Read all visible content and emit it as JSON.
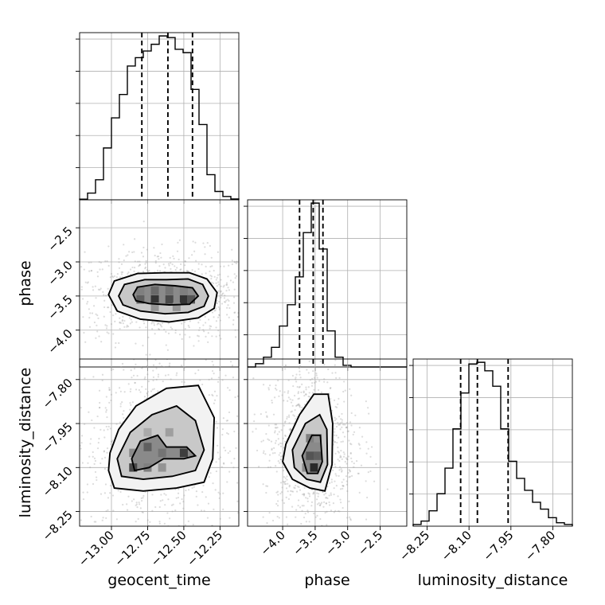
{
  "chart_data": {
    "type": "corner",
    "grid": true,
    "parameters": [
      {
        "name": "geocent_time",
        "label": "geocent_time",
        "range": [
          -13.22,
          -12.12
        ],
        "ticks": [
          -13.0,
          -12.75,
          -12.5,
          -12.25
        ],
        "tick_labels": [
          "−13.00",
          "−12.75",
          "−12.50",
          "−12.25"
        ],
        "histogram": {
          "edges": [
            -13.22,
            -13.165,
            -13.11,
            -13.055,
            -13.0,
            -12.945,
            -12.89,
            -12.835,
            -12.78,
            -12.725,
            -12.67,
            -12.615,
            -12.56,
            -12.505,
            -12.45,
            -12.395,
            -12.34,
            -12.285,
            -12.23,
            -12.175,
            -12.12
          ],
          "counts": [
            0.004,
            0.04,
            0.12,
            0.31,
            0.49,
            0.63,
            0.8,
            0.85,
            0.89,
            0.93,
            0.98,
            0.97,
            0.9,
            0.88,
            0.66,
            0.45,
            0.15,
            0.05,
            0.02,
            0.005
          ]
        },
        "quantiles": [
          -12.79,
          -12.61,
          -12.44
        ]
      },
      {
        "name": "phase",
        "label": "phase",
        "range": [
          -4.54,
          -2.09
        ],
        "ticks": [
          -4.0,
          -3.5,
          -3.0,
          -2.5
        ],
        "tick_labels": [
          "−4.0",
          "−3.5",
          "−3.0",
          "−2.5"
        ],
        "histogram": {
          "edges": [
            -4.54,
            -4.4175,
            -4.295,
            -4.1725,
            -4.05,
            -3.9275,
            -3.805,
            -3.6825,
            -3.56,
            -3.4375,
            -3.315,
            -3.1925,
            -3.07,
            -2.9475,
            -2.825,
            -2.7025,
            -2.58,
            -2.4575,
            -2.335,
            -2.2125,
            -2.09
          ],
          "counts": [
            0.0,
            0.02,
            0.06,
            0.12,
            0.25,
            0.38,
            0.55,
            0.82,
            1.0,
            0.72,
            0.22,
            0.06,
            0.01,
            0.0,
            0.0,
            0.0,
            0.0,
            0.0,
            0.0,
            0.0
          ]
        },
        "quantiles": [
          -3.74,
          -3.53,
          -3.38
        ]
      },
      {
        "name": "luminosity_distance",
        "label": "luminosity_distance",
        "range": [
          -8.3,
          -7.73
        ],
        "ticks": [
          -8.25,
          -8.1,
          -7.95,
          -7.8
        ],
        "tick_labels": [
          "−8.25",
          "−8.10",
          "−7.95",
          "−7.80"
        ],
        "histogram": {
          "edges": [
            -8.3,
            -8.2715,
            -8.243,
            -8.2145,
            -8.186,
            -8.1575,
            -8.129,
            -8.1005,
            -8.072,
            -8.0435,
            -8.015,
            -7.9865,
            -7.958,
            -7.9295,
            -7.901,
            -7.8725,
            -7.844,
            -7.8155,
            -7.787,
            -7.7585,
            -7.73
          ],
          "counts": [
            0.01,
            0.03,
            0.09,
            0.19,
            0.34,
            0.57,
            0.78,
            0.95,
            0.96,
            0.91,
            0.82,
            0.57,
            0.38,
            0.28,
            0.21,
            0.14,
            0.1,
            0.05,
            0.02,
            0.01
          ]
        },
        "quantiles": [
          -8.13,
          -8.07,
          -7.96
        ]
      }
    ],
    "joint_distributions": [
      {
        "x": "geocent_time",
        "y": "phase",
        "contours": [
          [
            [
              -13.02,
              -3.48
            ],
            [
              -12.98,
              -3.28
            ],
            [
              -12.82,
              -3.17
            ],
            [
              -12.64,
              -3.16
            ],
            [
              -12.46,
              -3.16
            ],
            [
              -12.34,
              -3.25
            ],
            [
              -12.27,
              -3.45
            ],
            [
              -12.29,
              -3.68
            ],
            [
              -12.4,
              -3.82
            ],
            [
              -12.6,
              -3.88
            ],
            [
              -12.8,
              -3.84
            ],
            [
              -12.96,
              -3.72
            ]
          ],
          [
            [
              -12.95,
              -3.5
            ],
            [
              -12.91,
              -3.33
            ],
            [
              -12.77,
              -3.26
            ],
            [
              -12.62,
              -3.26
            ],
            [
              -12.47,
              -3.25
            ],
            [
              -12.37,
              -3.33
            ],
            [
              -12.33,
              -3.5
            ],
            [
              -12.36,
              -3.65
            ],
            [
              -12.47,
              -3.74
            ],
            [
              -12.63,
              -3.76
            ],
            [
              -12.8,
              -3.72
            ],
            [
              -12.92,
              -3.63
            ]
          ],
          [
            [
              -12.85,
              -3.48
            ],
            [
              -12.82,
              -3.37
            ],
            [
              -12.7,
              -3.33
            ],
            [
              -12.56,
              -3.35
            ],
            [
              -12.44,
              -3.38
            ],
            [
              -12.4,
              -3.5
            ],
            [
              -12.46,
              -3.62
            ],
            [
              -12.6,
              -3.63
            ],
            [
              -12.74,
              -3.61
            ],
            [
              -12.83,
              -3.57
            ]
          ]
        ],
        "density_cells": [
          {
            "x": -12.8,
            "y": -3.42,
            "level": 0.55
          },
          {
            "x": -12.7,
            "y": -3.42,
            "level": 0.65
          },
          {
            "x": -12.6,
            "y": -3.42,
            "level": 0.6
          },
          {
            "x": -12.5,
            "y": -3.42,
            "level": 0.55
          },
          {
            "x": -12.8,
            "y": -3.55,
            "level": 0.7
          },
          {
            "x": -12.7,
            "y": -3.55,
            "level": 0.9
          },
          {
            "x": -12.6,
            "y": -3.55,
            "level": 0.8
          },
          {
            "x": -12.5,
            "y": -3.55,
            "level": 0.9
          },
          {
            "x": -12.45,
            "y": -3.55,
            "level": 0.75
          },
          {
            "x": -12.7,
            "y": -3.66,
            "level": 0.45
          },
          {
            "x": -12.55,
            "y": -3.66,
            "level": 0.45
          }
        ]
      },
      {
        "x": "geocent_time",
        "y": "luminosity_distance",
        "contours": [
          [
            [
              -13.01,
              -8.05
            ],
            [
              -12.95,
              -7.97
            ],
            [
              -12.83,
              -7.89
            ],
            [
              -12.62,
              -7.83
            ],
            [
              -12.4,
              -7.82
            ],
            [
              -12.29,
              -7.93
            ],
            [
              -12.3,
              -8.07
            ],
            [
              -12.36,
              -8.15
            ],
            [
              -12.55,
              -8.17
            ],
            [
              -12.78,
              -8.18
            ],
            [
              -12.98,
              -8.17
            ],
            [
              -13.02,
              -8.11
            ]
          ],
          [
            [
              -12.96,
              -8.07
            ],
            [
              -12.87,
              -7.98
            ],
            [
              -12.72,
              -7.92
            ],
            [
              -12.55,
              -7.89
            ],
            [
              -12.42,
              -7.94
            ],
            [
              -12.36,
              -8.04
            ],
            [
              -12.42,
              -8.11
            ],
            [
              -12.58,
              -8.13
            ],
            [
              -12.78,
              -8.14
            ],
            [
              -12.93,
              -8.13
            ]
          ],
          [
            [
              -12.86,
              -8.07
            ],
            [
              -12.8,
              -8.01
            ],
            [
              -12.68,
              -7.99
            ],
            [
              -12.62,
              -8.03
            ],
            [
              -12.48,
              -8.03
            ],
            [
              -12.42,
              -8.06
            ],
            [
              -12.5,
              -8.07
            ],
            [
              -12.64,
              -8.07
            ],
            [
              -12.74,
              -8.1
            ],
            [
              -12.84,
              -8.11
            ]
          ]
        ],
        "density_cells": [
          {
            "x": -12.85,
            "y": -8.05,
            "level": 0.5
          },
          {
            "x": -12.75,
            "y": -8.03,
            "level": 0.7
          },
          {
            "x": -12.65,
            "y": -8.05,
            "level": 0.6
          },
          {
            "x": -12.5,
            "y": -8.05,
            "level": 0.85
          },
          {
            "x": -12.85,
            "y": -8.1,
            "level": 0.8
          },
          {
            "x": -12.75,
            "y": -8.1,
            "level": 0.55
          },
          {
            "x": -12.65,
            "y": -8.1,
            "level": 0.45
          },
          {
            "x": -12.75,
            "y": -7.98,
            "level": 0.35
          },
          {
            "x": -12.6,
            "y": -7.98,
            "level": 0.4
          }
        ]
      },
      {
        "x": "phase",
        "y": "luminosity_distance",
        "contours": [
          [
            [
              -3.95,
              -8.02
            ],
            [
              -3.74,
              -7.92
            ],
            [
              -3.52,
              -7.85
            ],
            [
              -3.3,
              -7.85
            ],
            [
              -3.23,
              -7.95
            ],
            [
              -3.24,
              -8.09
            ],
            [
              -3.35,
              -8.18
            ],
            [
              -3.58,
              -8.17
            ],
            [
              -3.85,
              -8.14
            ],
            [
              -4.0,
              -8.08
            ]
          ],
          [
            [
              -3.85,
              -8.04
            ],
            [
              -3.65,
              -7.95
            ],
            [
              -3.43,
              -7.92
            ],
            [
              -3.32,
              -7.97
            ],
            [
              -3.31,
              -8.09
            ],
            [
              -3.42,
              -8.15
            ],
            [
              -3.63,
              -8.14
            ],
            [
              -3.82,
              -8.1
            ]
          ],
          [
            [
              -3.7,
              -8.06
            ],
            [
              -3.55,
              -7.99
            ],
            [
              -3.42,
              -7.99
            ],
            [
              -3.39,
              -8.08
            ],
            [
              -3.46,
              -8.12
            ],
            [
              -3.62,
              -8.12
            ]
          ]
        ],
        "density_cells": [
          {
            "x": -3.58,
            "y": -8.0,
            "level": 0.55
          },
          {
            "x": -3.46,
            "y": -8.0,
            "level": 0.45
          },
          {
            "x": -3.58,
            "y": -8.06,
            "level": 0.75
          },
          {
            "x": -3.46,
            "y": -8.06,
            "level": 0.7
          },
          {
            "x": -3.52,
            "y": -8.1,
            "level": 0.95
          },
          {
            "x": -3.64,
            "y": -8.1,
            "level": 0.5
          }
        ]
      }
    ]
  }
}
